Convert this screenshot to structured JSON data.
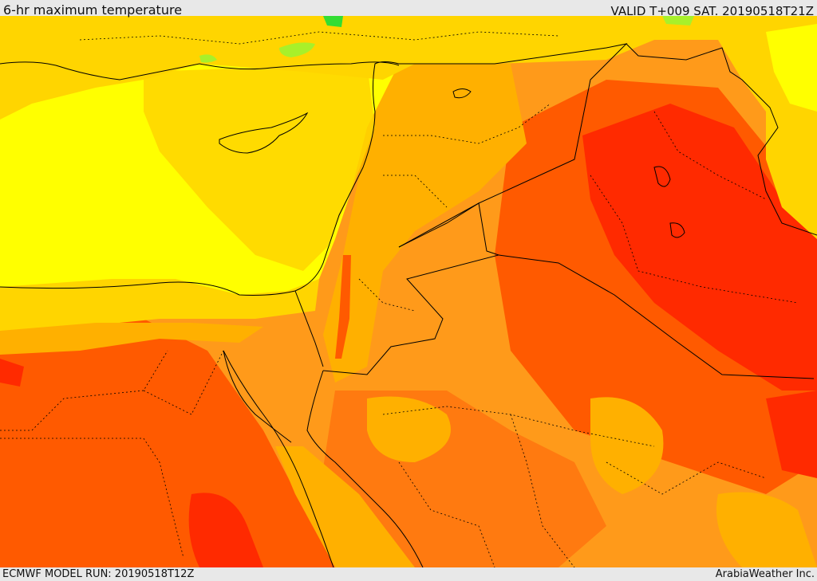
{
  "header": {
    "product_title": "6-hr maximum temperature",
    "valid_time": "VALID T+009 SAT. 20190518T21Z"
  },
  "footer": {
    "model_run": "ECMWF MODEL RUN: 20190518T12Z",
    "credit": "ArabiaWeather Inc."
  },
  "map": {
    "field": "6-hr maximum temperature",
    "colors": {
      "coolest_green": "#33dd33",
      "light_green": "#a8f02a",
      "yellow": "#ffff00",
      "gold": "#ffd500",
      "amber": "#ffb000",
      "orange": "#ff8c00",
      "dark_orange": "#ff5a00",
      "red": "#ff2a00",
      "border_line": "#000000"
    }
  }
}
